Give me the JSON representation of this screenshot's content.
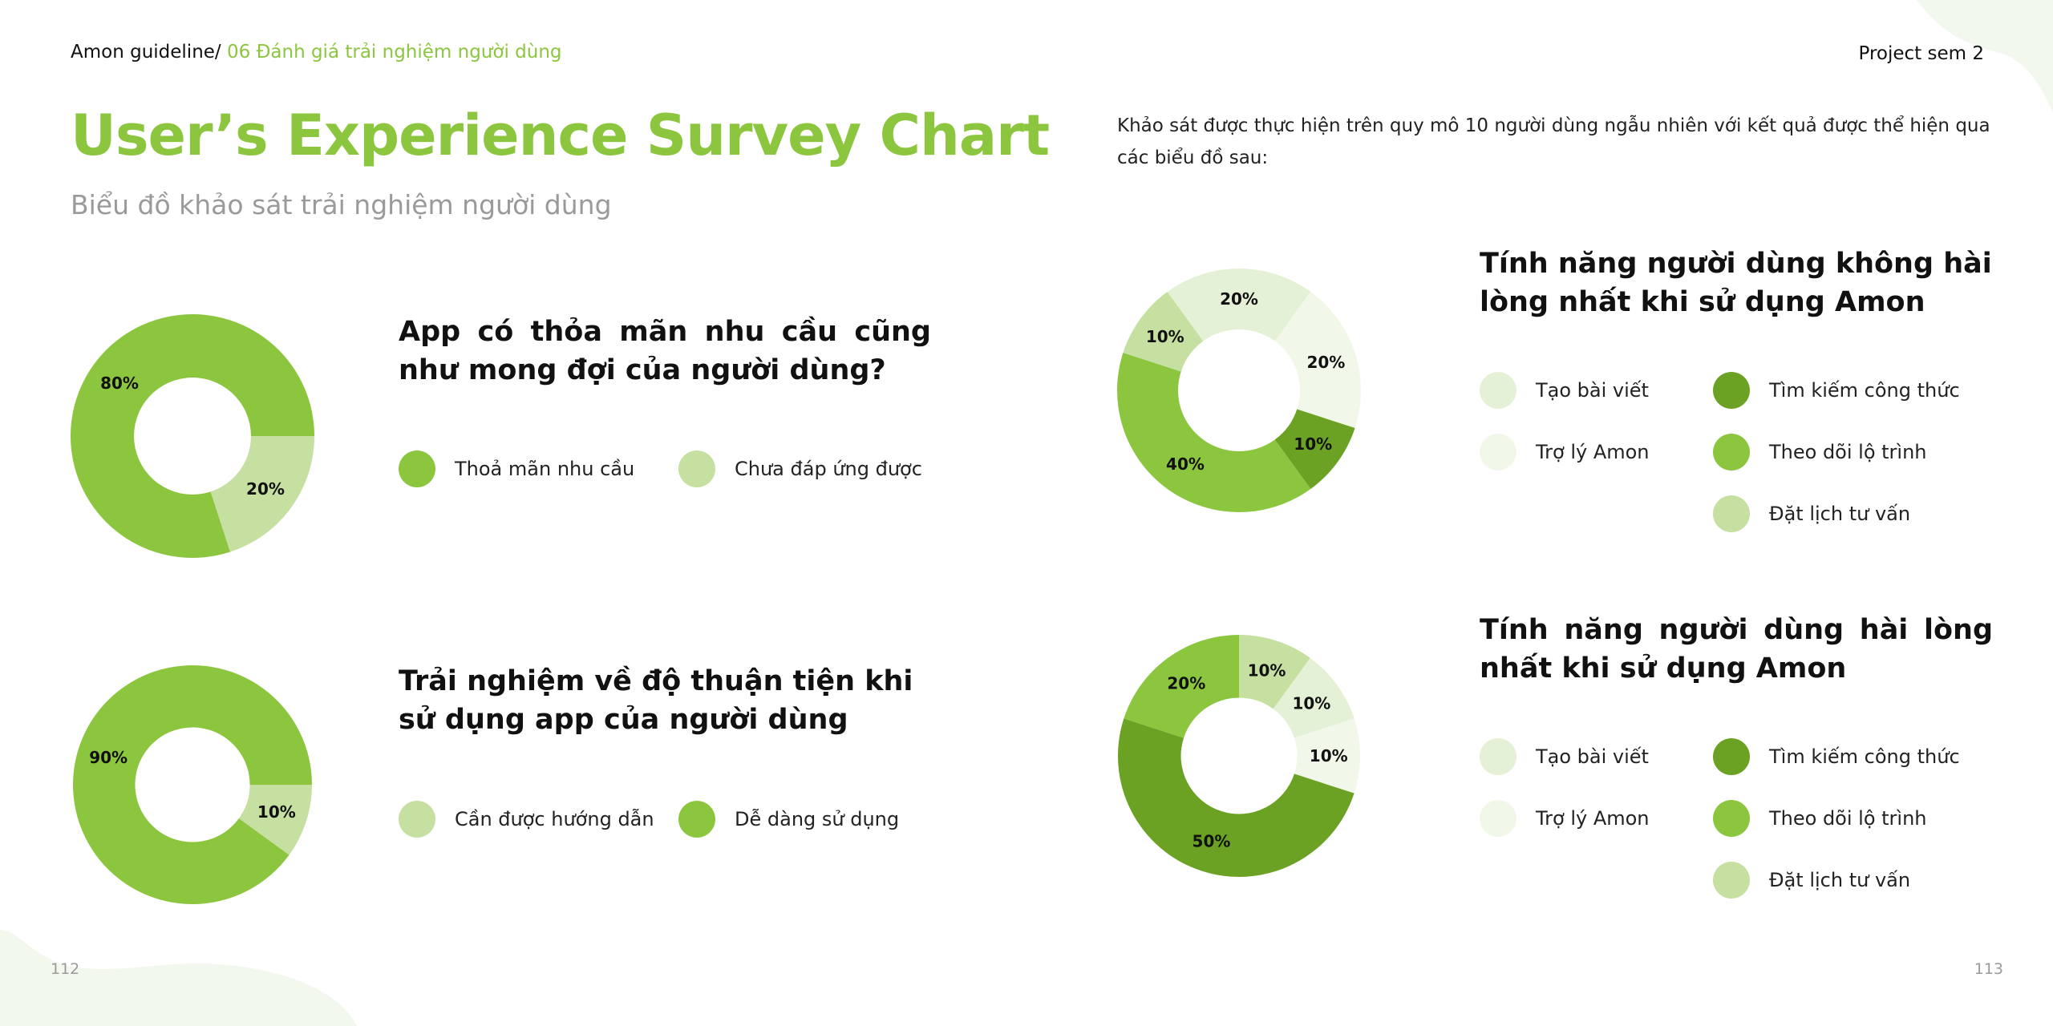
{
  "header": {
    "breadcrumb_root": "Amon guideline/",
    "breadcrumb_current": "06 Đánh giá trải nghiệm người dùng",
    "project": "Project sem 2"
  },
  "page": {
    "title": "User’s Experience Survey Chart",
    "subtitle": "Biểu đồ khảo sát trải nghiệm người dùng",
    "intro": "Khảo sát được thực hiện trên quy mô 10 người dùng ngẫu nhiên với kết quả được thể hiện qua các biểu đồ sau:",
    "page_left": "112",
    "page_right": "113"
  },
  "colors": {
    "accent": "#8cc63f",
    "light_green": "#c5e0a0",
    "pale_green": "#e5f1d6",
    "very_pale_green": "#f1f7e9",
    "dark_green": "#6ba224",
    "blob": "#f3f8ee"
  },
  "charts": {
    "c1": {
      "question": "App có thỏa mãn nhu cầu cũng như mong đợi của người dùng?",
      "legend": [
        {
          "label": "Thoả mãn nhu cầu",
          "color": "#8cc63f"
        },
        {
          "label": "Chưa đáp ứng được",
          "color": "#c5e0a0"
        }
      ]
    },
    "c2": {
      "question": "Trải nghiệm về độ thuận tiện khi sử dụng app của người dùng",
      "legend": [
        {
          "label": "Cần được hướng dẫn",
          "color": "#c5e0a0"
        },
        {
          "label": "Dễ dàng sử dụng",
          "color": "#8cc63f"
        }
      ]
    },
    "c3": {
      "question": "Tính năng người dùng không hài lòng nhất khi sử dụng Amon",
      "legend": [
        {
          "label": "Tạo bài viết",
          "color": "#e5f1d6"
        },
        {
          "label": "Tìm kiếm công thức",
          "color": "#6ba224"
        },
        {
          "label": "Trợ lý Amon",
          "color": "#f1f7e9"
        },
        {
          "label": "Theo dõi lộ trình",
          "color": "#8cc63f"
        },
        {
          "label": "Đặt lịch tư vấn",
          "color": "#c5e0a0"
        }
      ]
    },
    "c4": {
      "question": "Tính năng người dùng hài lòng nhất khi sử dụng Amon",
      "legend": [
        {
          "label": "Tạo bài viết",
          "color": "#e5f1d6"
        },
        {
          "label": "Tìm kiếm công thức",
          "color": "#6ba224"
        },
        {
          "label": "Trợ lý Amon",
          "color": "#f1f7e9"
        },
        {
          "label": "Theo dõi lộ trình",
          "color": "#8cc63f"
        },
        {
          "label": "Đặt lịch tư vấn",
          "color": "#c5e0a0"
        }
      ]
    }
  },
  "chart_data": [
    {
      "type": "pie",
      "title": "App có thỏa mãn nhu cầu cũng như mong đợi của người dùng?",
      "slices": [
        {
          "label": "Chưa đáp ứng được",
          "value": 20,
          "display": "20%",
          "color": "#c5e0a0"
        },
        {
          "label": "Thoả mãn nhu cầu",
          "value": 80,
          "display": "80%",
          "color": "#8cc63f"
        }
      ]
    },
    {
      "type": "pie",
      "title": "Trải nghiệm về độ thuận tiện khi sử dụng app của người dùng",
      "slices": [
        {
          "label": "Cần được hướng dẫn",
          "value": 10,
          "display": "10%",
          "color": "#c5e0a0"
        },
        {
          "label": "Dễ dàng sử dụng",
          "value": 90,
          "display": "90%",
          "color": "#8cc63f"
        }
      ]
    },
    {
      "type": "pie",
      "title": "Tính năng người dùng không hài lòng nhất khi sử dụng Amon",
      "slices": [
        {
          "label": "Trợ lý Amon",
          "value": 20,
          "display": "20%",
          "color": "#f1f7e9"
        },
        {
          "label": "Tìm kiếm công thức",
          "value": 10,
          "display": "10%",
          "color": "#6ba224"
        },
        {
          "label": "Theo dõi lộ trình",
          "value": 40,
          "display": "40%",
          "color": "#8cc63f"
        },
        {
          "label": "Đặt lịch tư vấn",
          "value": 10,
          "display": "10%",
          "color": "#c5e0a0"
        },
        {
          "label": "Tạo bài viết",
          "value": 20,
          "display": "20%",
          "color": "#e5f1d6"
        }
      ]
    },
    {
      "type": "pie",
      "title": "Tính năng người dùng hài lòng nhất khi sử dụng Amon",
      "slices": [
        {
          "label": "Tạo bài viết",
          "value": 10,
          "display": "10%",
          "color": "#e5f1d6"
        },
        {
          "label": "Trợ lý Amon",
          "value": 10,
          "display": "10%",
          "color": "#f1f7e9"
        },
        {
          "label": "Tìm kiếm công thức",
          "value": 50,
          "display": "50%",
          "color": "#6ba224"
        },
        {
          "label": "Theo dõi lộ trình",
          "value": 20,
          "display": "20%",
          "color": "#8cc63f"
        },
        {
          "label": "Đặt lịch tư vấn",
          "value": 10,
          "display": "10%",
          "color": "#c5e0a0"
        }
      ]
    }
  ]
}
